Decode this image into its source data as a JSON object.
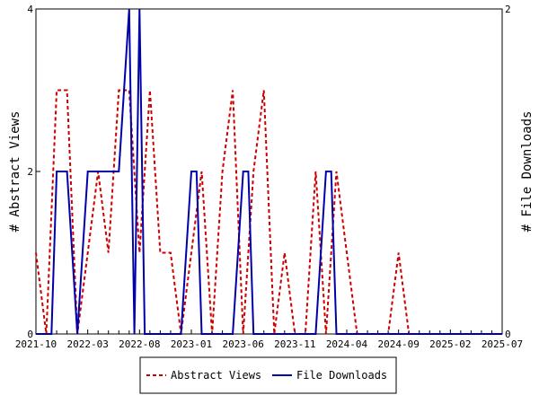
{
  "chart_data": {
    "type": "line",
    "x_tick_labels": [
      "2021-10",
      "2022-03",
      "2022-08",
      "2023-01",
      "2023-06",
      "2023-11",
      "2024-04",
      "2024-09",
      "2025-02",
      "2025-07"
    ],
    "x_tick_months": [
      0,
      5,
      10,
      15,
      20,
      25,
      30,
      35,
      40,
      45
    ],
    "x_range_months": [
      0,
      45
    ],
    "y_left": {
      "label": "# Abstract Views",
      "ylim": [
        0,
        4
      ],
      "ticks": [
        "0",
        "2",
        "4"
      ]
    },
    "y_right": {
      "label": "# File Downloads",
      "ylim": [
        0,
        2
      ],
      "ticks": [
        "0",
        "2"
      ]
    },
    "grid": false,
    "legend_position": "bottom",
    "series": [
      {
        "name": "Abstract Views",
        "axis": "left",
        "color": "#cc0000",
        "style": "dashed",
        "x": [
          0,
          1,
          2,
          3,
          4,
          5,
          6,
          7,
          8,
          9,
          10,
          11,
          12,
          13,
          14,
          15,
          16,
          17,
          18,
          19,
          20,
          21,
          22,
          23,
          24,
          25,
          26,
          27,
          28,
          29,
          30,
          31,
          32,
          33,
          34,
          35,
          36,
          37,
          38,
          39,
          40,
          41,
          42,
          43,
          44,
          45
        ],
        "values": [
          1,
          0,
          3,
          3,
          0,
          1,
          2,
          1,
          3,
          3,
          1,
          3,
          1,
          1,
          0,
          1,
          2,
          0,
          2,
          3,
          0,
          2,
          3,
          0,
          1,
          0,
          0,
          2,
          0,
          2,
          1,
          0,
          0,
          0,
          0,
          1,
          0,
          0,
          0,
          0,
          0,
          0,
          0,
          0,
          0,
          0
        ]
      },
      {
        "name": "File Downloads",
        "axis": "right",
        "color": "#0000aa",
        "style": "solid",
        "x": [
          0,
          1,
          1.5,
          2,
          3,
          4,
          5,
          6,
          7,
          8,
          9,
          9.5,
          10,
          10.5,
          11,
          12,
          13,
          14,
          15,
          15.5,
          16,
          17,
          18,
          19,
          20,
          20.5,
          21,
          22,
          23,
          24,
          25,
          26,
          27,
          28,
          28.5,
          29,
          30,
          31,
          32,
          33,
          34,
          35,
          36,
          37,
          38,
          39,
          40,
          41,
          42,
          43,
          44,
          45
        ],
        "values": [
          0,
          0,
          0,
          1,
          1,
          0,
          1,
          1,
          1,
          1,
          2,
          0,
          2,
          0,
          0,
          0,
          0,
          0,
          1,
          1,
          0,
          0,
          0,
          0,
          1,
          1,
          0,
          0,
          0,
          0,
          0,
          0,
          0,
          1,
          1,
          0,
          0,
          0,
          0,
          0,
          0,
          0,
          0,
          0,
          0,
          0,
          0,
          0,
          0,
          0,
          0,
          0
        ]
      }
    ]
  }
}
